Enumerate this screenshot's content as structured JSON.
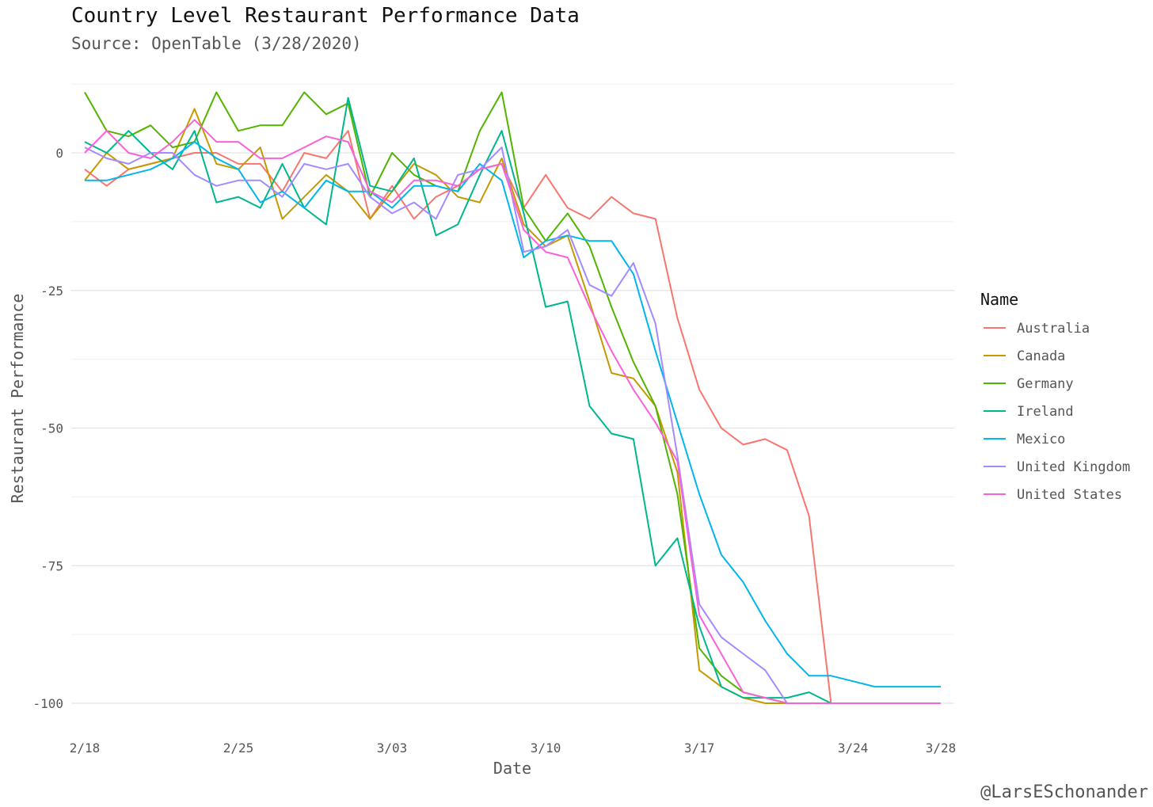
{
  "title": "Country Level Restaurant Performance Data",
  "subtitle": "Source: OpenTable (3/28/2020)",
  "credit": "@LarsESchonander",
  "chart_data": {
    "type": "line",
    "title": "Country Level Restaurant Performance Data",
    "subtitle": "Source: OpenTable (3/28/2020)",
    "xlabel": "Date",
    "ylabel": "Restaurant Performance",
    "x": [
      "2/18",
      "2/19",
      "2/20",
      "2/21",
      "2/22",
      "2/23",
      "2/24",
      "2/25",
      "2/26",
      "2/27",
      "2/28",
      "2/29",
      "3/01",
      "3/02",
      "3/03",
      "3/04",
      "3/05",
      "3/06",
      "3/07",
      "3/08",
      "3/09",
      "3/10",
      "3/11",
      "3/12",
      "3/13",
      "3/14",
      "3/15",
      "3/16",
      "3/17",
      "3/18",
      "3/19",
      "3/20",
      "3/21",
      "3/22",
      "3/23",
      "3/24",
      "3/25",
      "3/26",
      "3/27",
      "3/28"
    ],
    "x_ticks": [
      "2/18",
      "2/25",
      "3/03",
      "3/10",
      "3/17",
      "3/24",
      "3/28"
    ],
    "x_tick_index": [
      0,
      7,
      14,
      21,
      28,
      35,
      39
    ],
    "ylim": [
      -105,
      12.5
    ],
    "y_ticks": [
      0,
      -25,
      -50,
      -75,
      -100
    ],
    "grid": true,
    "legend_title": "Name",
    "legend_position": "right",
    "series": [
      {
        "name": "Australia",
        "color": "#F8766D",
        "values": [
          -3,
          -6,
          -3,
          -2,
          -1,
          0,
          0,
          -2,
          -2,
          -7,
          0,
          -1,
          4,
          -12,
          -6,
          -12,
          -8,
          -6,
          -3,
          -2,
          -10,
          -4,
          -10,
          -12,
          -8,
          -11,
          -12,
          -30,
          -43,
          -50,
          -53,
          -52,
          -54,
          -66,
          -100,
          null,
          null,
          null,
          null,
          null
        ]
      },
      {
        "name": "Canada",
        "color": "#C49A00",
        "values": [
          -5,
          0,
          -3,
          -2,
          -1,
          8,
          -2,
          -3,
          1,
          -12,
          -8,
          -4,
          -7,
          -12,
          -7,
          -2,
          -4,
          -8,
          -9,
          -1,
          -13,
          -17,
          -15,
          -27,
          -40,
          -41,
          -46,
          -58,
          -94,
          -97,
          -99,
          -100,
          -100,
          -100,
          -100,
          null,
          null,
          null,
          null,
          null
        ]
      },
      {
        "name": "Germany",
        "color": "#53B400",
        "values": [
          11,
          4,
          3,
          5,
          1,
          2,
          11,
          4,
          5,
          5,
          11,
          7,
          9,
          -8,
          0,
          -4,
          -6,
          -7,
          4,
          11,
          -10,
          -16,
          -11,
          -17,
          -28,
          -38,
          -46,
          -62,
          -90,
          -95,
          -98,
          -99,
          -100,
          -100,
          -100,
          null,
          null,
          null,
          null,
          null
        ]
      },
      {
        "name": "Ireland",
        "color": "#00B68C",
        "values": [
          2,
          0,
          4,
          0,
          -3,
          4,
          -9,
          -8,
          -10,
          -2,
          -10,
          -13,
          10,
          -6,
          -7,
          -1,
          -15,
          -13,
          -4,
          4,
          -11,
          -28,
          -27,
          -46,
          -51,
          -52,
          -75,
          -70,
          -86,
          -97,
          -99,
          -99,
          -99,
          -98,
          -100,
          null,
          null,
          null,
          null,
          null
        ]
      },
      {
        "name": "Mexico",
        "color": "#00B6EB",
        "values": [
          -5,
          -5,
          -4,
          -3,
          -1,
          2,
          -1,
          -3,
          -9,
          -7,
          -10,
          -5,
          -7,
          -7,
          -10,
          -6,
          -6,
          -7,
          -2,
          -5,
          -19,
          -16,
          -15,
          -16,
          -16,
          -22,
          -36,
          -49,
          -62,
          -73,
          -78,
          -85,
          -91,
          -95,
          -95,
          -96,
          -97,
          -97,
          -97,
          -97
        ]
      },
      {
        "name": "United Kingdom",
        "color": "#A58AFF",
        "values": [
          1,
          -1,
          -2,
          0,
          0,
          -4,
          -6,
          -5,
          -5,
          -8,
          -2,
          -3,
          -2,
          -8,
          -11,
          -9,
          -12,
          -4,
          -3,
          1,
          -18,
          -17,
          -14,
          -24,
          -26,
          -20,
          -31,
          -55,
          -82,
          -88,
          -91,
          -94,
          -100,
          -100,
          -100,
          null,
          null,
          null,
          null,
          null
        ]
      },
      {
        "name": "United States",
        "color": "#FB61D7",
        "values": [
          0,
          4,
          0,
          -1,
          2,
          6,
          2,
          2,
          -1,
          -1,
          1,
          3,
          2,
          -7,
          -9,
          -5,
          -5,
          -6,
          -3,
          -2,
          -14,
          -18,
          -19,
          -28,
          -36,
          -43,
          -49,
          -56,
          -84,
          -91,
          -98,
          -99,
          -100,
          -100,
          -100,
          -100,
          -100,
          -100,
          -100,
          -100
        ]
      }
    ]
  }
}
